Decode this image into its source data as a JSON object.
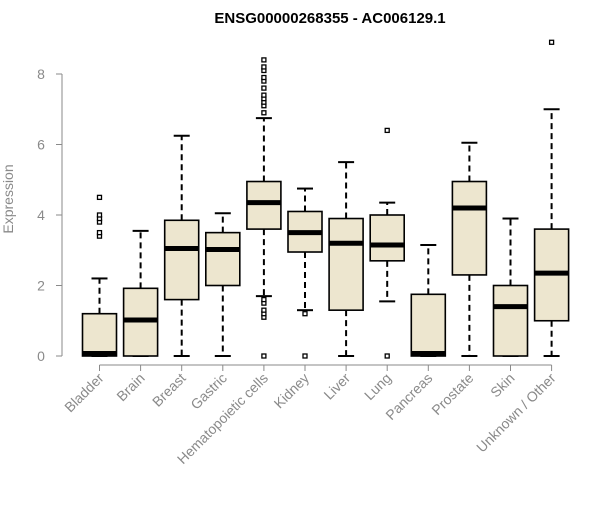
{
  "chart_data": {
    "type": "box",
    "title": "ENSG00000268355 - AC006129.1",
    "xlabel": "",
    "ylabel": "Expression",
    "ylim": [
      0,
      9
    ],
    "yticks": [
      0,
      2,
      4,
      6,
      8
    ],
    "y_tick_labels": [
      "0",
      "2",
      "4",
      "6",
      "8"
    ],
    "grid": false,
    "legend": "none",
    "categories": [
      "Bladder",
      "Brain",
      "Breast",
      "Gastric",
      "Hematopoietic cells",
      "Kidney",
      "Liver",
      "Lung",
      "Pancreas",
      "Prostate",
      "Skin",
      "Unknown / Other"
    ],
    "boxes": [
      {
        "whisker_low": 0,
        "q1": 0,
        "median": 0.02,
        "q3": 1.2,
        "whisker_high": 2.2,
        "outliers": [
          3.4,
          3.5,
          3.8,
          3.9,
          4.0,
          4.5
        ]
      },
      {
        "whisker_low": 0,
        "q1": 0,
        "median": 1.02,
        "q3": 1.92,
        "whisker_high": 3.55,
        "outliers": []
      },
      {
        "whisker_low": 0,
        "q1": 1.6,
        "median": 3.05,
        "q3": 3.85,
        "whisker_high": 6.25,
        "outliers": []
      },
      {
        "whisker_low": 0,
        "q1": 2.0,
        "median": 3.02,
        "q3": 3.5,
        "whisker_high": 4.05,
        "outliers": []
      },
      {
        "whisker_low": 1.7,
        "q1": 3.6,
        "median": 4.35,
        "q3": 4.95,
        "whisker_high": 6.75,
        "outliers": [
          0,
          1.1,
          1.2,
          1.3,
          1.5,
          1.6,
          6.9,
          7.1,
          7.2,
          7.3,
          7.4,
          7.6,
          7.8,
          7.9,
          8.1,
          8.2,
          8.4
        ]
      },
      {
        "whisker_low": 1.3,
        "q1": 2.95,
        "median": 3.5,
        "q3": 4.1,
        "whisker_high": 4.75,
        "outliers": [
          0,
          1.2
        ]
      },
      {
        "whisker_low": 0,
        "q1": 1.3,
        "median": 3.2,
        "q3": 3.9,
        "whisker_high": 5.5,
        "outliers": []
      },
      {
        "whisker_low": 1.55,
        "q1": 2.7,
        "median": 3.15,
        "q3": 4.0,
        "whisker_high": 4.35,
        "outliers": [
          0,
          6.4
        ]
      },
      {
        "whisker_low": 0,
        "q1": 0,
        "median": 0.02,
        "q3": 1.75,
        "whisker_high": 3.15,
        "outliers": []
      },
      {
        "whisker_low": 0,
        "q1": 2.3,
        "median": 4.2,
        "q3": 4.95,
        "whisker_high": 6.05,
        "outliers": []
      },
      {
        "whisker_low": 0,
        "q1": 0,
        "median": 1.4,
        "q3": 2.0,
        "whisker_high": 3.9,
        "outliers": []
      },
      {
        "whisker_low": 0,
        "q1": 1.0,
        "median": 2.35,
        "q3": 3.6,
        "whisker_high": 7.0,
        "outliers": [
          8.9
        ]
      }
    ],
    "colors": {
      "box_fill": "#ede6cf",
      "box_stroke": "#000000",
      "median": "#000000",
      "axis": "#8a8a8a",
      "title": "#000000"
    }
  }
}
